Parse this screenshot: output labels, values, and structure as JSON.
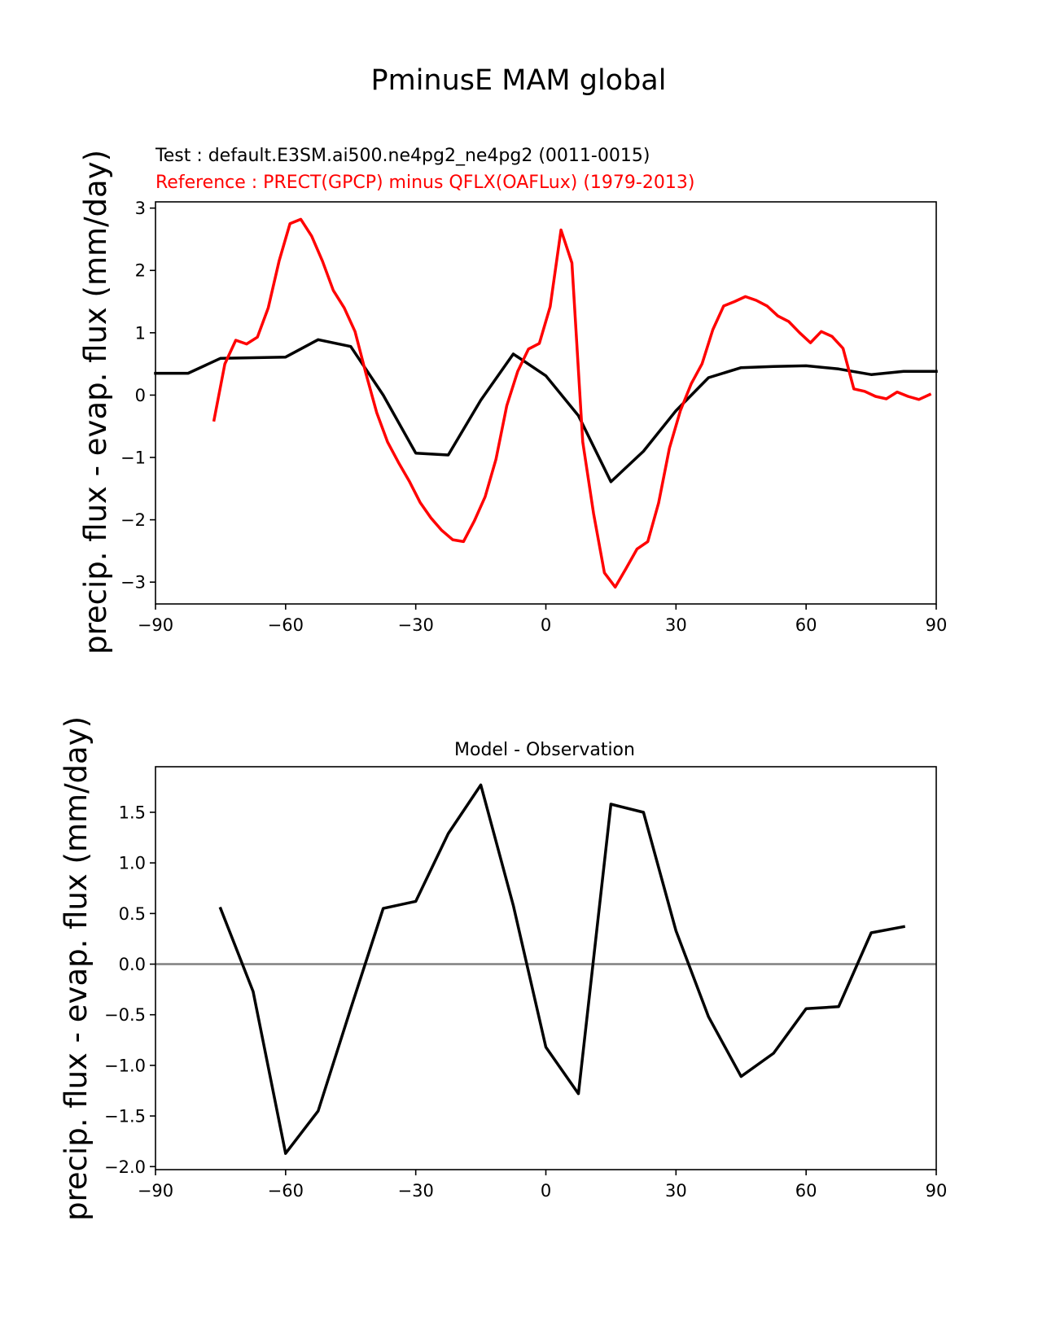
{
  "figure_title": "PminusE MAM global",
  "colors": {
    "test": "#000000",
    "reference": "#ff0000",
    "difference": "#000000",
    "zero_line": "#808080",
    "axes": "#000000"
  },
  "chart_data": [
    {
      "type": "line",
      "panel": "top",
      "title_test": "Test : default.E3SM.ai500.ne4pg2_ne4pg2 (0011-0015)",
      "title_reference": "Reference : PRECT(GPCP) minus QFLX(OAFLux) (1979-2013)",
      "xlabel": "",
      "ylabel": "precip. flux - evap. flux (mm/day)",
      "xlim": [
        -90,
        90
      ],
      "ylim": [
        -3.35,
        3.1
      ],
      "xticks": [
        -90,
        -60,
        -30,
        0,
        30,
        60,
        90
      ],
      "xtick_labels": [
        "−90",
        "−60",
        "−30",
        "0",
        "30",
        "60",
        "90"
      ],
      "yticks": [
        -3,
        -2,
        -1,
        0,
        1,
        2,
        3
      ],
      "ytick_labels": [
        "−3",
        "−2",
        "−1",
        "0",
        "1",
        "2",
        "3"
      ],
      "series": [
        {
          "name": "Test",
          "color": "#000000",
          "x": [
            -90,
            -82.5,
            -75,
            -67.5,
            -60,
            -52.5,
            -45,
            -37.5,
            -30,
            -22.5,
            -15,
            -7.5,
            0,
            7.5,
            15,
            22.5,
            30,
            37.5,
            45,
            52.5,
            60,
            67.5,
            75,
            82.5,
            90
          ],
          "y": [
            0.35,
            0.35,
            0.59,
            0.6,
            0.61,
            0.89,
            0.78,
            0.0,
            -0.93,
            -0.96,
            -0.08,
            0.66,
            0.31,
            -0.33,
            -1.39,
            -0.9,
            -0.25,
            0.28,
            0.44,
            0.46,
            0.47,
            0.42,
            0.33,
            0.38,
            0.38
          ]
        },
        {
          "name": "Reference",
          "color": "#ff0000",
          "x": [
            -76.5,
            -74,
            -71.5,
            -69,
            -66.5,
            -64,
            -61.5,
            -59,
            -56.5,
            -54,
            -51.5,
            -49,
            -46.5,
            -44,
            -41.5,
            -39,
            -36.5,
            -34,
            -31.5,
            -29,
            -26.5,
            -24,
            -21.5,
            -19,
            -16.5,
            -14,
            -11.5,
            -9,
            -6.5,
            -4,
            -1.5,
            1,
            3.5,
            6,
            8.5,
            11,
            13.5,
            16,
            18.5,
            21,
            23.5,
            26,
            28.5,
            31,
            33.5,
            36,
            38.5,
            41,
            43.5,
            46,
            48.5,
            51,
            53.5,
            56,
            58.5,
            61,
            63.5,
            66,
            68.5,
            71,
            73.5,
            76,
            78.5,
            81,
            83.5,
            86,
            88.5
          ],
          "y": [
            -0.4,
            0.5,
            0.88,
            0.82,
            0.93,
            1.4,
            2.15,
            2.75,
            2.82,
            2.55,
            2.15,
            1.68,
            1.4,
            1.02,
            0.35,
            -0.28,
            -0.75,
            -1.08,
            -1.38,
            -1.72,
            -1.97,
            -2.17,
            -2.32,
            -2.35,
            -2.02,
            -1.63,
            -1.03,
            -0.17,
            0.38,
            0.74,
            0.83,
            1.42,
            2.65,
            2.12,
            -0.75,
            -1.9,
            -2.85,
            -3.08,
            -2.78,
            -2.47,
            -2.35,
            -1.73,
            -0.85,
            -0.25,
            0.18,
            0.5,
            1.05,
            1.43,
            1.5,
            1.58,
            1.52,
            1.43,
            1.27,
            1.18,
            1.0,
            0.84,
            1.02,
            0.94,
            0.75,
            0.1,
            0.06,
            -0.02,
            -0.06,
            0.05,
            -0.02,
            -0.07,
            0.01
          ]
        }
      ]
    },
    {
      "type": "line",
      "panel": "bottom",
      "title": "Model - Observation",
      "xlabel": "",
      "ylabel": "precip. flux - evap. flux (mm/day)",
      "xlim": [
        -90,
        90
      ],
      "ylim": [
        -2.03,
        1.95
      ],
      "xticks": [
        -90,
        -60,
        -30,
        0,
        30,
        60,
        90
      ],
      "xtick_labels": [
        "−90",
        "−60",
        "−30",
        "0",
        "30",
        "60",
        "90"
      ],
      "yticks": [
        -2.0,
        -1.5,
        -1.0,
        -0.5,
        0.0,
        0.5,
        1.0,
        1.5
      ],
      "ytick_labels": [
        "−2.0",
        "−1.5",
        "−1.0",
        "−0.5",
        "0.0",
        "0.5",
        "1.0",
        "1.5"
      ],
      "zero_line": 0,
      "series": [
        {
          "name": "Model - Observation",
          "color": "#000000",
          "x": [
            -75,
            -67.5,
            -60,
            -52.5,
            -45,
            -37.5,
            -30,
            -22.5,
            -15,
            -7.5,
            0,
            7.5,
            15,
            22.5,
            30,
            37.5,
            45,
            52.5,
            60,
            67.5,
            75,
            82.5
          ],
          "y": [
            0.55,
            -0.27,
            -1.87,
            -1.45,
            -0.44,
            0.55,
            0.62,
            1.29,
            1.77,
            0.58,
            -0.82,
            -1.28,
            1.58,
            1.5,
            0.33,
            -0.52,
            -1.11,
            -0.88,
            -0.44,
            -0.42,
            0.31,
            0.37
          ]
        }
      ]
    }
  ]
}
